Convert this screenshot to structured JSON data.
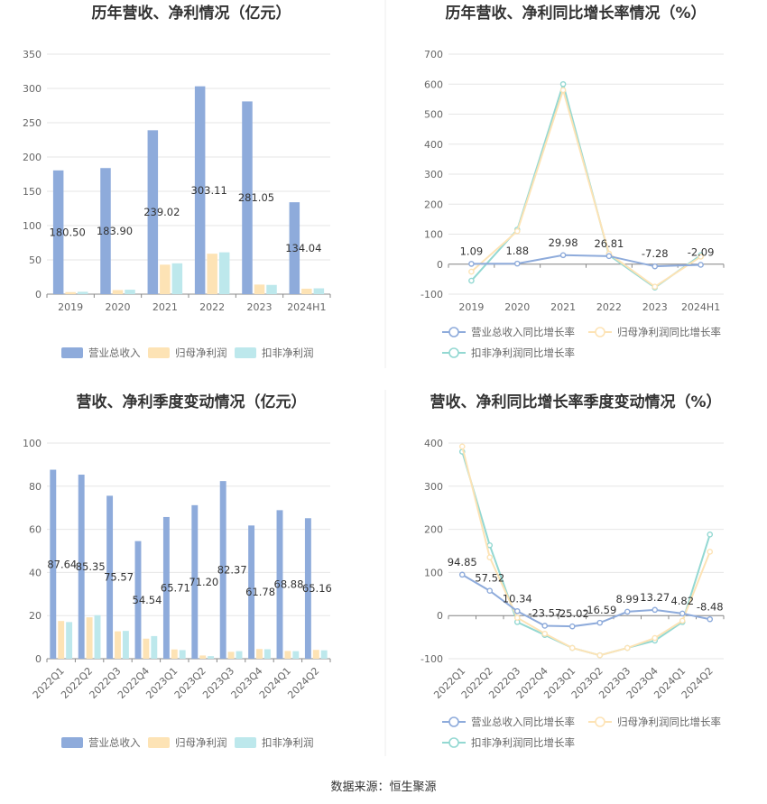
{
  "source_label": "数据来源：恒生聚源",
  "colors": {
    "revenue": "#8eabdb",
    "net_profit": "#fde3b5",
    "deducted_profit": "#bde8ec",
    "revenue_line": "#8eabdb",
    "net_profit_line": "#fde3b5",
    "deducted_line": "#93d8d2"
  },
  "chart_data": [
    {
      "type": "bar",
      "title": "历年营收、净利情况（亿元）",
      "categories": [
        "2019",
        "2020",
        "2021",
        "2022",
        "2023",
        "2024H1"
      ],
      "ylim": [
        0,
        350
      ],
      "yticks": [
        0,
        50,
        100,
        150,
        200,
        250,
        300,
        350
      ],
      "series": [
        {
          "name": "营业总收入",
          "values": [
            180.5,
            183.9,
            239.02,
            303.11,
            281.05,
            134.04
          ],
          "labels": [
            "180.50",
            "183.90",
            "239.02",
            "303.11",
            "281.05",
            "134.04"
          ]
        },
        {
          "name": "归母净利润",
          "values": [
            3,
            6,
            43,
            59,
            14,
            8
          ]
        },
        {
          "name": "扣非净利润",
          "values": [
            3.5,
            6.5,
            45,
            61,
            13.5,
            8.5
          ]
        }
      ],
      "legend": "bottom",
      "grid": true
    },
    {
      "type": "line",
      "title": "历年营收、净利同比增长率情况（%）",
      "categories": [
        "2019",
        "2020",
        "2021",
        "2022",
        "2023",
        "2024H1"
      ],
      "ylim": [
        -100,
        700
      ],
      "yticks": [
        -100,
        0,
        100,
        200,
        300,
        400,
        500,
        600,
        700
      ],
      "series": [
        {
          "name": "营业总收入同比增长率",
          "values": [
            1.09,
            1.88,
            29.98,
            26.81,
            -7.28,
            -2.09
          ],
          "labels": [
            "1.09",
            "1.88",
            "29.98",
            "26.81",
            "-7.28",
            "-2.09"
          ]
        },
        {
          "name": "归母净利润同比增长率",
          "values": [
            -25,
            110,
            580,
            35,
            -75,
            25
          ]
        },
        {
          "name": "扣非净利润同比增长率",
          "values": [
            -55,
            115,
            600,
            30,
            -78,
            30
          ]
        }
      ],
      "legend": "bottom",
      "grid": true
    },
    {
      "type": "bar",
      "title": "营收、净利季度变动情况（亿元）",
      "categories": [
        "2022Q1",
        "2022Q2",
        "2022Q3",
        "2022Q4",
        "2023Q1",
        "2023Q2",
        "2023Q3",
        "2023Q4",
        "2024Q1",
        "2024Q2"
      ],
      "ylim": [
        0,
        100
      ],
      "yticks": [
        0,
        20,
        40,
        60,
        80,
        100
      ],
      "series": [
        {
          "name": "营业总收入",
          "values": [
            87.64,
            85.35,
            75.57,
            54.54,
            65.71,
            71.2,
            82.37,
            61.78,
            68.88,
            65.16
          ],
          "labels": [
            "87.64",
            "85.35",
            "75.57",
            "54.54",
            "65.71",
            "71.20",
            "82.37",
            "61.78",
            "68.88",
            "65.16"
          ]
        },
        {
          "name": "归母净利润",
          "values": [
            17.5,
            19.2,
            12.7,
            9.3,
            4.3,
            1.5,
            3.2,
            4.5,
            3.6,
            4.1
          ]
        },
        {
          "name": "扣非净利润",
          "values": [
            17.0,
            20.2,
            12.9,
            10.5,
            4.0,
            1.2,
            3.5,
            4.4,
            3.5,
            3.9
          ]
        }
      ],
      "legend": "bottom",
      "grid": true
    },
    {
      "type": "line",
      "title": "营收、净利同比增长率季度变动情况（%）",
      "categories": [
        "2022Q1",
        "2022Q2",
        "2022Q3",
        "2022Q4",
        "2023Q1",
        "2023Q2",
        "2023Q3",
        "2023Q4",
        "2024Q1",
        "2024Q2"
      ],
      "ylim": [
        -100,
        400
      ],
      "yticks": [
        -100,
        0,
        100,
        200,
        300,
        400
      ],
      "series": [
        {
          "name": "营业总收入同比增长率",
          "values": [
            94.85,
            57.52,
            10.34,
            -23.57,
            -25.02,
            -16.59,
            8.99,
            13.27,
            4.82,
            -8.48
          ],
          "labels": [
            "94.85",
            "57.52",
            "10.34",
            "-23.57",
            "-25.02",
            "-16.59",
            "8.99",
            "13.27",
            "4.82",
            "-8.48"
          ]
        },
        {
          "name": "归母净利润同比增长率",
          "values": [
            392,
            135,
            -5,
            -42,
            -75,
            -92,
            -75,
            -52,
            -12,
            148
          ]
        },
        {
          "name": "扣非净利润同比增长率",
          "values": [
            380,
            163,
            -15,
            -45,
            -75,
            -92,
            -75,
            -58,
            -15,
            188
          ]
        }
      ],
      "legend": "bottom",
      "grid": true
    }
  ]
}
